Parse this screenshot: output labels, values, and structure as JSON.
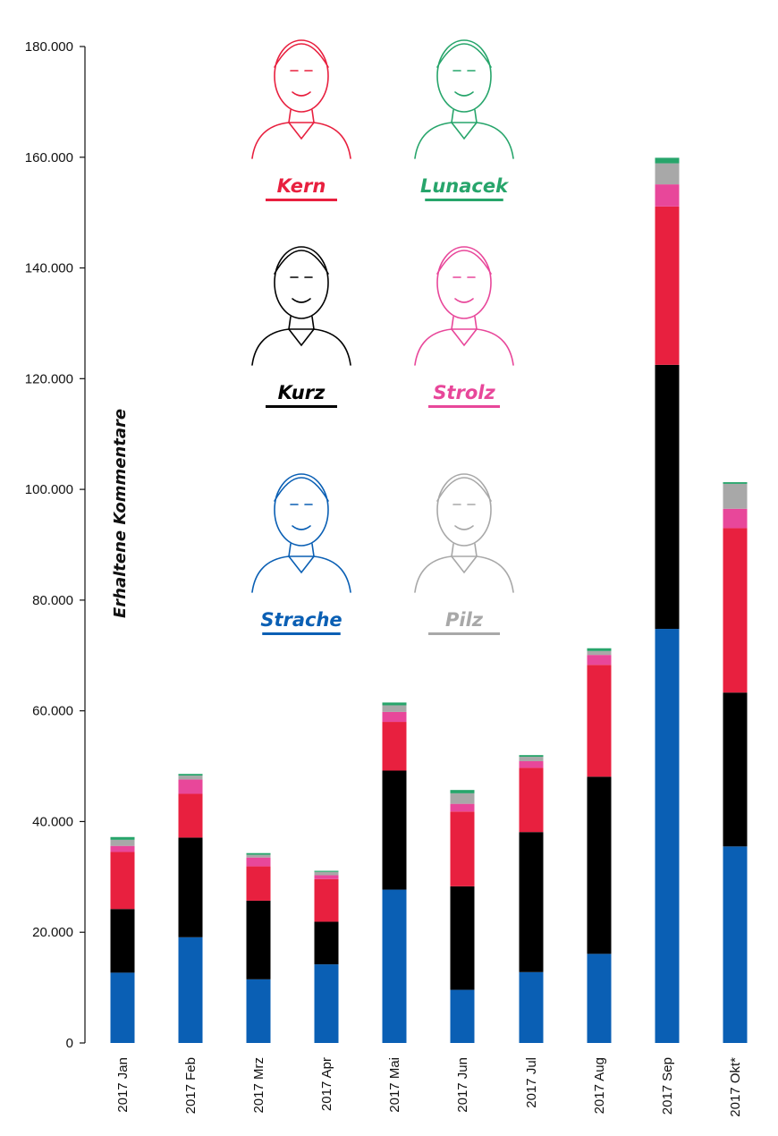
{
  "chart_data": {
    "type": "bar",
    "stacked": true,
    "ylabel": "Erhaltene Kommentare",
    "xlabel": "",
    "ylim": [
      0,
      180000
    ],
    "yticks": [
      0,
      20000,
      40000,
      60000,
      80000,
      100000,
      120000,
      140000,
      160000,
      180000
    ],
    "ytick_labels": [
      "0",
      "20.000",
      "40.000",
      "60.000",
      "80.000",
      "100.000",
      "120.000",
      "140.000",
      "160.000",
      "180.000"
    ],
    "grid": false,
    "legend_position": "top-center",
    "categories": [
      "2017 Jan",
      "2017 Feb",
      "2017 Mrz",
      "2017 Apr",
      "2017 Mai",
      "2017 Jun",
      "2017 Jul",
      "2017 Aug",
      "2017 Sep",
      "2017 Okt*"
    ],
    "series": [
      {
        "name": "Strache",
        "color": "#0a5fb4",
        "values": [
          12700,
          19100,
          11500,
          14200,
          27700,
          9600,
          12800,
          16100,
          74800,
          35500
        ]
      },
      {
        "name": "Kurz",
        "color": "#000000",
        "values": [
          11500,
          18000,
          14200,
          7700,
          21500,
          18700,
          25300,
          32000,
          47700,
          27800
        ]
      },
      {
        "name": "Kern",
        "color": "#e8203f",
        "values": [
          10300,
          7900,
          6200,
          7700,
          8800,
          13500,
          11600,
          20200,
          28600,
          29700
        ]
      },
      {
        "name": "Strolz",
        "color": "#e8479a",
        "values": [
          1100,
          2600,
          1600,
          700,
          1800,
          1400,
          1200,
          1800,
          4000,
          3500
        ]
      },
      {
        "name": "Pilz",
        "color": "#a8a8a8",
        "values": [
          1100,
          700,
          500,
          600,
          1200,
          1900,
          800,
          700,
          3800,
          4500
        ]
      },
      {
        "name": "Lunacek",
        "color": "#27a56b",
        "values": [
          500,
          300,
          300,
          200,
          500,
          600,
          300,
          500,
          1000,
          300
        ]
      }
    ]
  }
}
